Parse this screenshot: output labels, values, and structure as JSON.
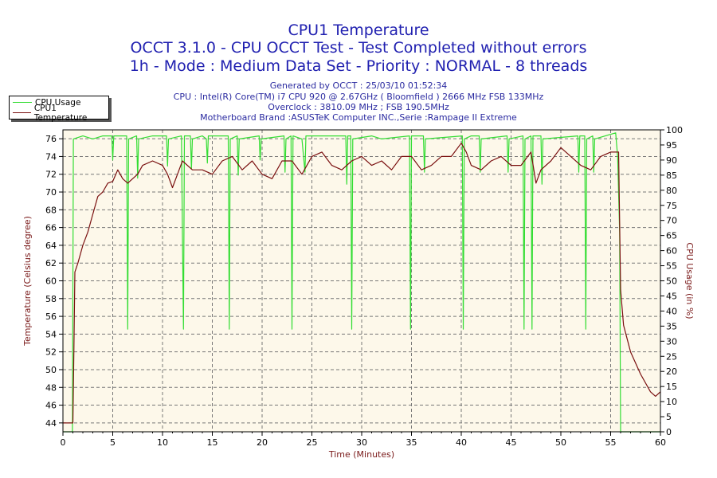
{
  "titles": {
    "line1": "CPU1 Temperature",
    "line2": "OCCT 3.1.0 - CPU OCCT Test - Test Completed without errors",
    "line3": "1h - Mode : Medium Data Set - Priority : NORMAL - 8 threads"
  },
  "info": {
    "generated": "Generated by OCCT : 25/03/10 01:52:34",
    "cpu": "CPU : Intel(R) Core(TM) i7 CPU 920 @ 2.67GHz ( Bloomfield ) 2666 MHz FSB 133MHz",
    "overclock": "Overclock : 3810.09 MHz ; FSB 190.5MHz",
    "motherboard": "Motherboard Brand :ASUSTeK Computer INC.,Serie :Rampage II Extreme"
  },
  "colors": {
    "cpu_usage": "#33dd33",
    "temperature": "#7a1010",
    "plot_bg": "#fdf8ea",
    "title": "#2020b0",
    "axis_label": "#7a1a1a"
  },
  "chart_data": {
    "type": "line",
    "xlabel": "Time (Minutes)",
    "ylabel_left": "Temperature (Celsius degree)",
    "ylabel_right": "CPU Usage (in %)",
    "xlim": [
      0,
      60
    ],
    "ylim_left": [
      43,
      77
    ],
    "ylim_right": [
      0,
      100
    ],
    "xticks": [
      0,
      5,
      10,
      15,
      20,
      25,
      30,
      35,
      40,
      45,
      50,
      55,
      60
    ],
    "yticks_left": [
      44,
      46,
      48,
      50,
      52,
      54,
      56,
      58,
      60,
      62,
      64,
      66,
      68,
      70,
      72,
      74,
      76
    ],
    "yticks_right": [
      0,
      5,
      10,
      15,
      20,
      25,
      30,
      35,
      40,
      45,
      50,
      55,
      60,
      65,
      70,
      75,
      80,
      85,
      90,
      95,
      100
    ],
    "grid": true,
    "legend_placement": "top-left",
    "series": [
      {
        "name": "CPU Usage",
        "axis": "right",
        "x": [
          0,
          0.95,
          1.05,
          2,
          3,
          4,
          4.9,
          5,
          5.1,
          6.4,
          6.5,
          6.6,
          7.4,
          7.5,
          7.6,
          9,
          10.4,
          10.5,
          10.6,
          11.9,
          12,
          12.1,
          12.2,
          12.8,
          12.9,
          13,
          14,
          14.4,
          14.5,
          14.6,
          16.6,
          16.7,
          16.8,
          17.5,
          17.6,
          17.7,
          19.7,
          19.8,
          19.9,
          22.2,
          22.3,
          22.4,
          22.9,
          23,
          23.1,
          24,
          24.3,
          24.4,
          28.4,
          28.5,
          28.6,
          28.9,
          29,
          29.1,
          31,
          32,
          34.8,
          34.9,
          35,
          36.2,
          36.3,
          36.4,
          40.1,
          40.2,
          40.3,
          41,
          41.8,
          41.9,
          42,
          44.6,
          44.7,
          44.8,
          46.2,
          46.3,
          46.4,
          47,
          47.1,
          47.2,
          48,
          48.1,
          48.2,
          51.7,
          51.8,
          51.9,
          52.4,
          52.5,
          52.6,
          53.2,
          53.3,
          53.4,
          55.5,
          55.7,
          55.9,
          56,
          60
        ],
        "y": [
          0,
          0,
          97,
          98,
          97,
          98,
          98,
          90,
          98,
          98,
          34,
          97,
          98,
          84,
          97,
          98,
          98,
          88,
          97,
          98,
          65,
          34,
          98,
          98,
          87,
          97,
          98,
          97,
          89,
          98,
          98,
          34,
          97,
          98,
          85,
          97,
          98,
          90,
          97,
          98,
          86,
          97,
          98,
          34,
          98,
          97,
          86,
          98,
          98,
          82,
          98,
          98,
          34,
          97,
          98,
          97,
          98,
          34,
          98,
          98,
          86,
          97,
          98,
          34,
          97,
          98,
          98,
          86,
          97,
          98,
          86,
          97,
          98,
          34,
          97,
          98,
          34,
          98,
          98,
          82,
          97,
          98,
          86,
          98,
          98,
          34,
          97,
          98,
          86,
          97,
          99,
          91,
          66,
          0,
          0
        ]
      },
      {
        "name": "CPU1 Temperature",
        "axis": "left",
        "x": [
          0,
          1.0,
          1.1,
          1.2,
          1.5,
          2,
          2.5,
          3,
          3.5,
          4,
          4.5,
          5,
          5.5,
          6,
          6.5,
          7,
          7.5,
          8,
          9,
          10,
          10.5,
          11,
          11.5,
          12,
          13,
          14,
          15,
          16,
          17,
          18,
          19,
          20,
          21,
          22,
          23,
          24,
          25,
          26,
          27,
          28,
          29,
          30,
          31,
          32,
          33,
          34,
          35,
          36,
          37,
          38,
          39,
          40,
          40.5,
          41,
          42,
          43,
          44,
          45,
          46,
          47,
          47.5,
          48,
          49,
          50,
          51,
          52,
          53,
          54,
          55,
          55.8,
          56,
          56.3,
          57,
          58,
          59,
          59.5,
          60
        ],
        "y": [
          44,
          44,
          52.5,
          61,
          62,
          64,
          65.5,
          67.5,
          69.5,
          70,
          71,
          71.2,
          72.5,
          71.5,
          71,
          71.5,
          72,
          73,
          73.5,
          73,
          72,
          70.5,
          72,
          73.5,
          72.5,
          72.5,
          72,
          73.5,
          74,
          72.5,
          73.5,
          72,
          71.5,
          73.5,
          73.5,
          72,
          74,
          74.5,
          73,
          72.5,
          73.5,
          74,
          73,
          73.5,
          72.5,
          74,
          74,
          72.5,
          73,
          74,
          74,
          75.5,
          74.5,
          73,
          72.5,
          73.5,
          74,
          73,
          73,
          74.5,
          71,
          72.5,
          73.5,
          75,
          74,
          73,
          72.5,
          74,
          74.5,
          74.5,
          59,
          55,
          52,
          49.5,
          47.5,
          47,
          47.5
        ]
      }
    ]
  }
}
